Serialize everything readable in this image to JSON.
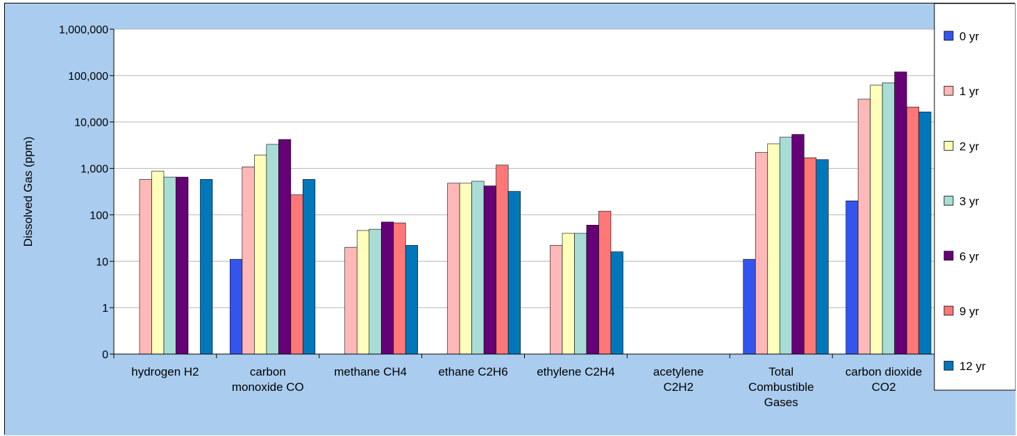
{
  "chart_data": {
    "type": "bar",
    "ylabel": "Dissolved Gas (ppm)",
    "xlabel": "",
    "y_scale": "log",
    "ylim": [
      0,
      1000000
    ],
    "y_ticks": [
      {
        "value": 0,
        "label": "0"
      },
      {
        "value": 1,
        "label": "1"
      },
      {
        "value": 10,
        "label": "10"
      },
      {
        "value": 100,
        "label": "100"
      },
      {
        "value": 1000,
        "label": "1,000"
      },
      {
        "value": 10000,
        "label": "10,000"
      },
      {
        "value": 100000,
        "label": "100,000"
      },
      {
        "value": 1000000,
        "label": "1,000,000"
      }
    ],
    "categories": [
      [
        "hydrogen H2"
      ],
      [
        "carbon",
        "monoxide CO"
      ],
      [
        "methane CH4"
      ],
      [
        "ethane C2H6"
      ],
      [
        "ethylene C2H4"
      ],
      [
        "acetylene",
        "C2H2"
      ],
      [
        "Total",
        "Combustible",
        "Gases"
      ],
      [
        "carbon dioxide",
        "CO2"
      ]
    ],
    "series": [
      {
        "name": "0 yr",
        "color": "#3355ee",
        "values": [
          null,
          11,
          null,
          null,
          null,
          null,
          11,
          200
        ]
      },
      {
        "name": "1 yr",
        "color": "#ffb8b8",
        "values": [
          580,
          1080,
          20,
          480,
          22,
          null,
          2200,
          31000
        ]
      },
      {
        "name": "2 yr",
        "color": "#ffffbb",
        "values": [
          870,
          1950,
          46,
          480,
          40,
          null,
          3400,
          62000
        ]
      },
      {
        "name": "3 yr",
        "color": "#a8ddd6",
        "values": [
          650,
          3300,
          49,
          530,
          40,
          null,
          4700,
          70000
        ]
      },
      {
        "name": "6 yr",
        "color": "#660077",
        "values": [
          650,
          4200,
          70,
          420,
          60,
          null,
          5400,
          120000
        ]
      },
      {
        "name": "9 yr",
        "color": "#ff7777",
        "values": [
          null,
          270,
          67,
          1180,
          120,
          null,
          1700,
          21000
        ]
      },
      {
        "name": "12 yr",
        "color": "#0077bb",
        "values": [
          580,
          580,
          22,
          320,
          16,
          null,
          1550,
          16500
        ]
      }
    ],
    "grid": true,
    "legend_position": "right",
    "plot_background": "#ffffff",
    "chart_background": "#aaccee"
  }
}
